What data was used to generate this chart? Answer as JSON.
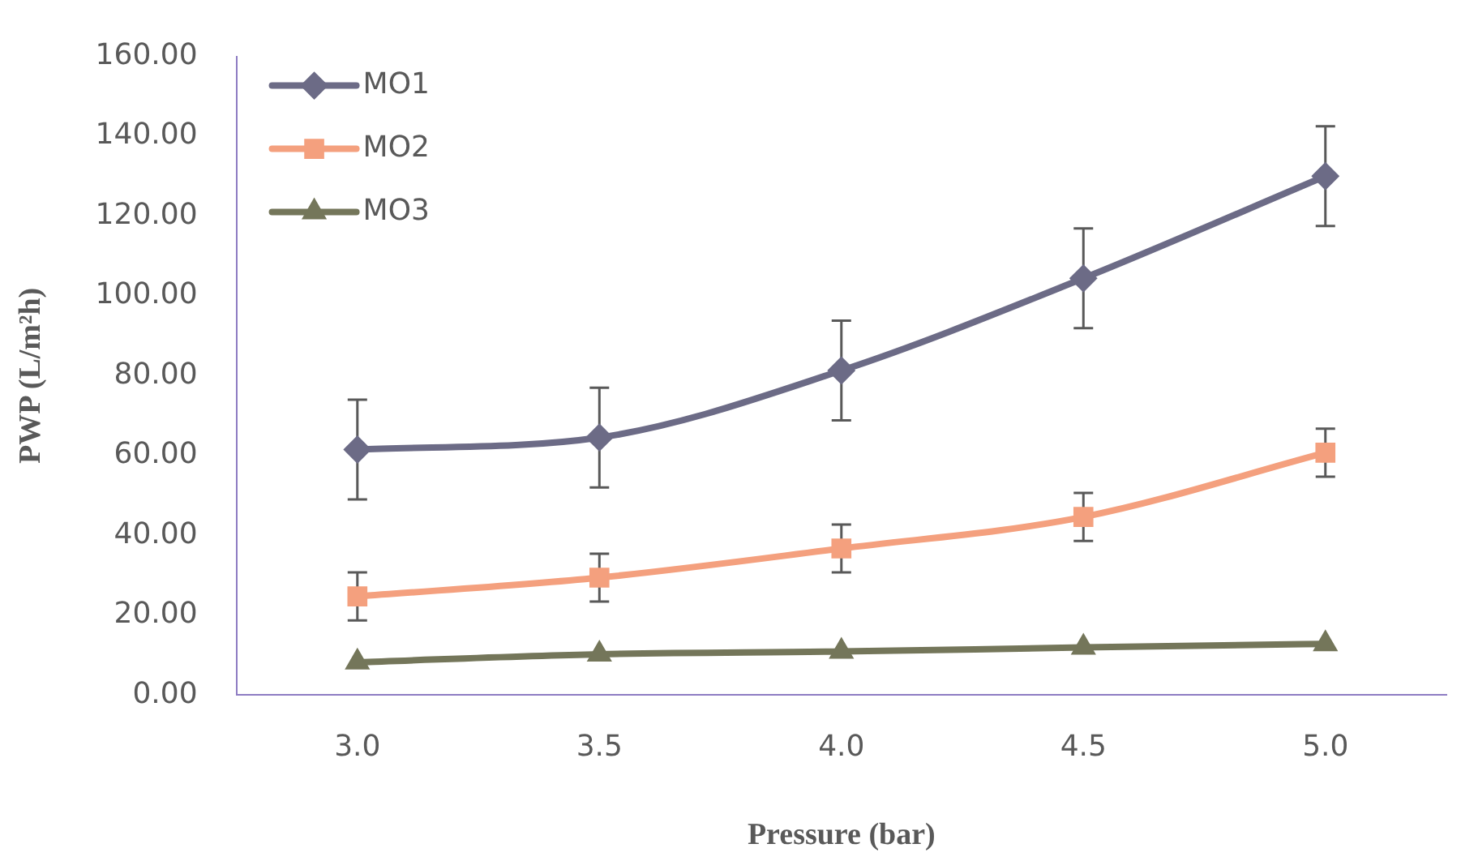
{
  "chart_data": {
    "type": "line",
    "xlabel": "Pressure (bar)",
    "ylabel": "PWP (L/m²h)",
    "categories": [
      "3.0",
      "3.5",
      "4.0",
      "4.5",
      "5.0"
    ],
    "series": [
      {
        "name": "MO1",
        "color": "#6c6b86",
        "marker": "diamond",
        "values": [
          61.5,
          64.5,
          81.3,
          104.4,
          130
        ],
        "errors": [
          12.5,
          12.5,
          12.5,
          12.5,
          12.5
        ]
      },
      {
        "name": "MO2",
        "color": "#f4a07e",
        "marker": "square",
        "values": [
          24.7,
          29.4,
          36.7,
          44.6,
          60.7
        ],
        "errors": [
          6,
          6,
          6,
          6,
          6
        ]
      },
      {
        "name": "MO3",
        "color": "#74765a",
        "marker": "triangle",
        "values": [
          8.2,
          10.2,
          10.9,
          11.9,
          12.8
        ]
      }
    ],
    "ylim": [
      0,
      160
    ],
    "yticks": [
      {
        "value": 0,
        "label": "0.00"
      },
      {
        "value": 20,
        "label": "20.00"
      },
      {
        "value": 40,
        "label": "40.00"
      },
      {
        "value": 60,
        "label": "60.00"
      },
      {
        "value": 80,
        "label": "80.00"
      },
      {
        "value": 100,
        "label": "100.00"
      },
      {
        "value": 120,
        "label": "120.00"
      },
      {
        "value": 140,
        "label": "140.00"
      },
      {
        "value": 160,
        "label": "160.00"
      }
    ],
    "grid": false,
    "legend": "top left"
  }
}
